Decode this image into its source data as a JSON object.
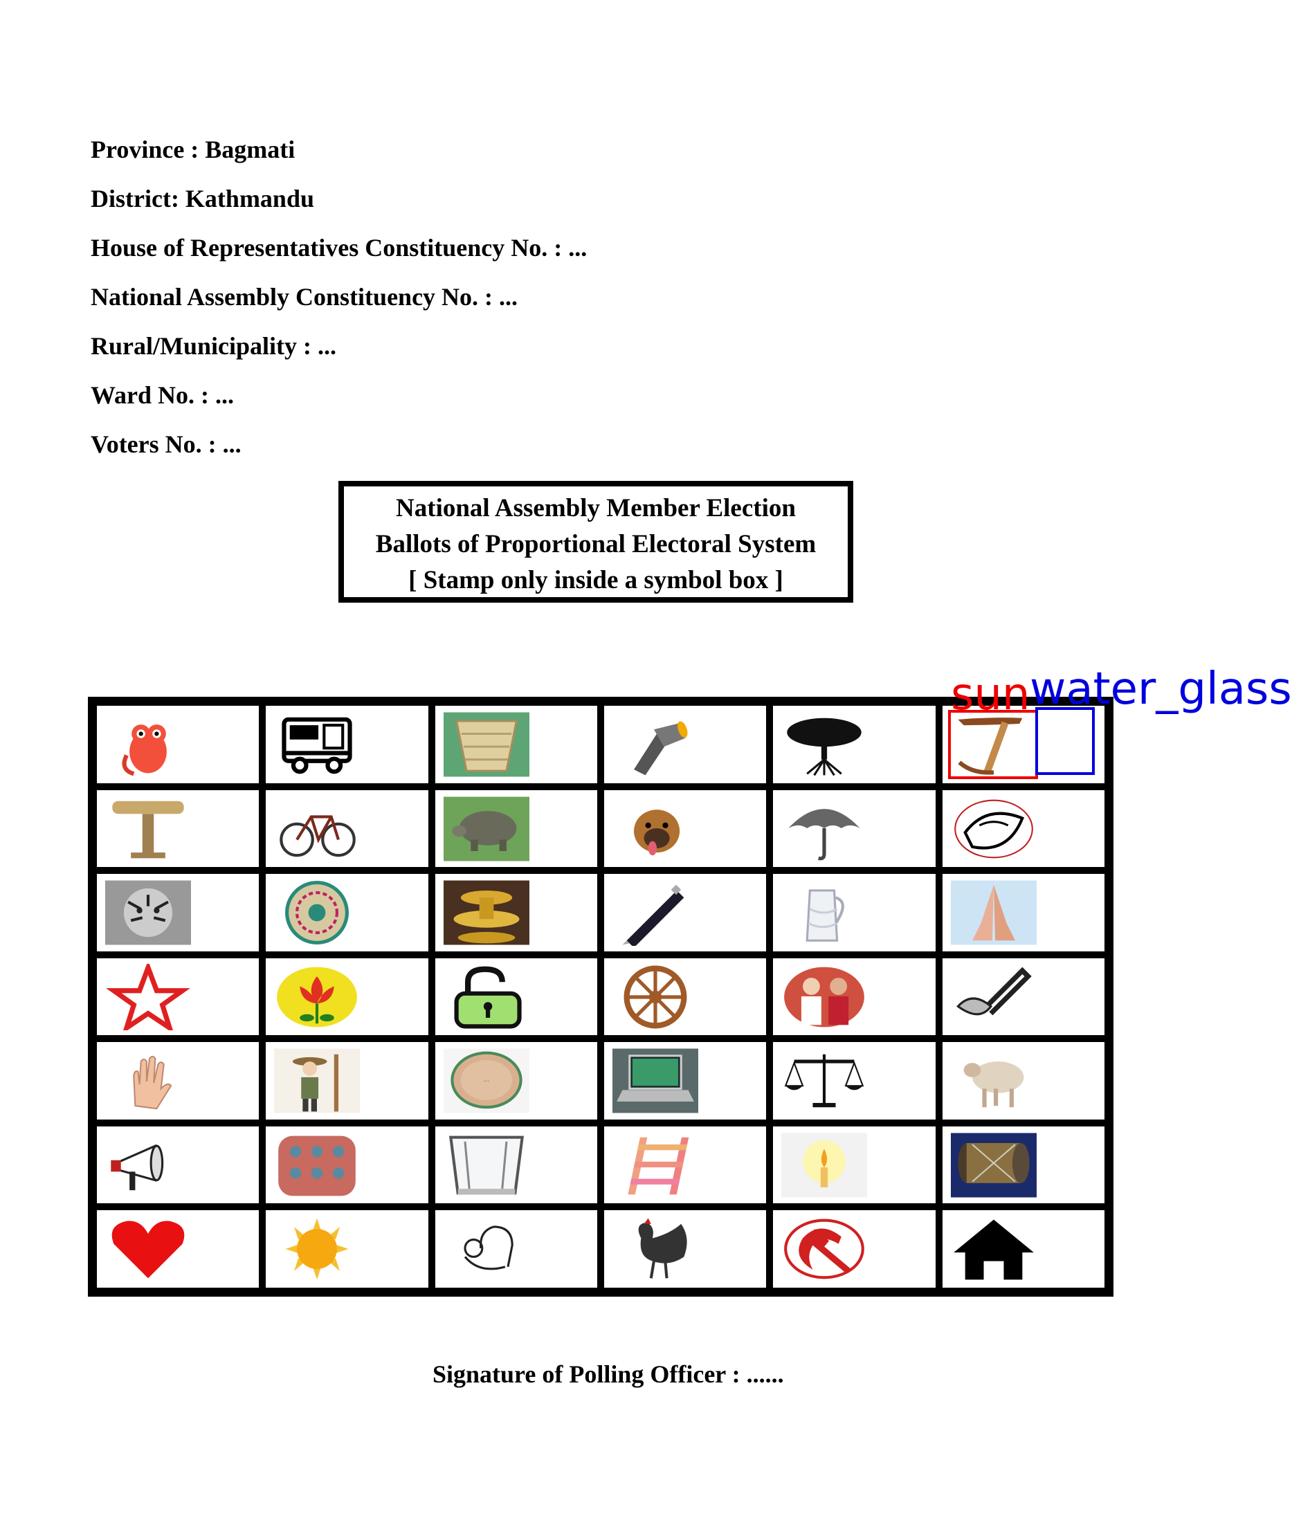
{
  "header": {
    "province": "Province : Bagmati",
    "district": "District: Kathmandu",
    "hor_constituency": "House of Representatives Constituency No. : ...",
    "na_constituency": "National Assembly Constituency No. : ...",
    "municipality": "Rural/Municipality : ...",
    "ward": "Ward No. : ...",
    "voters": "Voters No. : ..."
  },
  "title_box": {
    "line1": "National Assembly Member Election",
    "line2": "Ballots of Proportional Electoral System",
    "line3": "[ Stamp only inside a symbol box ]"
  },
  "symbols": [
    [
      "owl",
      "bus",
      "basket",
      "torch",
      "tree",
      "hammer-pick-swastika"
    ],
    [
      "post-lamp",
      "bicycle",
      "tortoise",
      "dog",
      "umbrella",
      "conch"
    ],
    [
      "tiger",
      "mat",
      "brass-vessels",
      "pen",
      "water-jug",
      "namaste-hands"
    ],
    [
      "star",
      "lotus",
      "padlock",
      "wheel",
      "couple",
      "spade"
    ],
    [
      "palm",
      "farmer",
      "drum",
      "laptop",
      "scales",
      "sheep"
    ],
    [
      "megaphone",
      "cloth",
      "water-glass",
      "ladder",
      "candle",
      "madal-drum"
    ],
    [
      "heart",
      "sun",
      "mother-child",
      "rooster",
      "hammer-sickle",
      "house"
    ]
  ],
  "annotations": [
    {
      "label": "sun",
      "color": "#ee0000"
    },
    {
      "label": "water_glass",
      "color": "#0000dd"
    }
  ],
  "signature": "Signature of Polling Officer : ......"
}
